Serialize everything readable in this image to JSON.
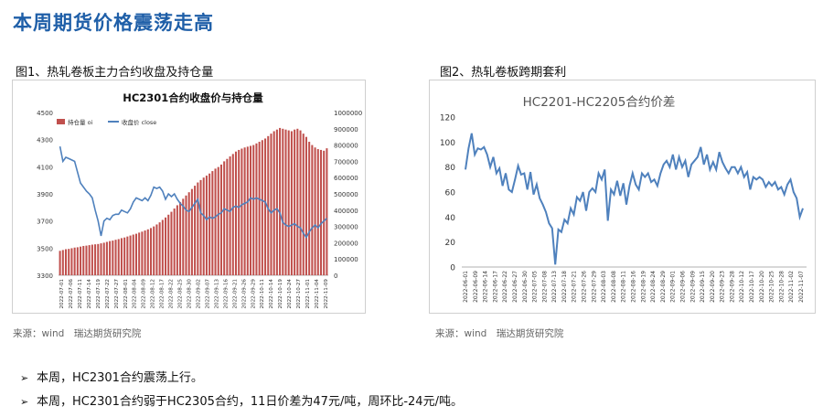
{
  "page": {
    "title": "本周期货价格震荡走高",
    "fig1_caption": "图1、热轧卷板主力合约收盘及持仓量",
    "fig2_caption": "图2、热轧卷板跨期套利",
    "source1": "来源：wind　瑞达期货研究院",
    "source2": "来源：wind　瑞达期货研究院",
    "bullet1": "本周，HC2301合约震荡上行。",
    "bullet2": "本周，HC2301合约弱于HC2305合约，11日价差为47元/吨，周环比-24元/吨。",
    "colors": {
      "title": "#1f5fa8",
      "bar": "#c0504d",
      "line": "#4f81bd"
    }
  },
  "chart_data": [
    {
      "type": "bar+line",
      "title": "HC2301合约收盘价与持仓量",
      "legend": [
        "持仓量 oi",
        "收盘价 close"
      ],
      "legend_position": "top",
      "y_left": {
        "min": 3300,
        "max": 4500,
        "ticks": [
          "4500",
          "4300",
          "4100",
          "3900",
          "3700",
          "3500",
          "3300"
        ]
      },
      "y_right": {
        "min": 0,
        "max": 1000000,
        "ticks": [
          "1000000",
          "900000",
          "800000",
          "700000",
          "600000",
          "500000",
          "400000",
          "300000",
          "200000",
          "100000",
          "0"
        ]
      },
      "x_ticks": [
        "2022-07-01",
        "2022-07-06",
        "2022-07-11",
        "2022-07-14",
        "2022-07-19",
        "2022-07-22",
        "2022-07-27",
        "2022-08-01",
        "2022-08-04",
        "2022-08-09",
        "2022-08-12",
        "2022-08-17",
        "2022-08-22",
        "2022-08-25",
        "2022-08-30",
        "2022-09-02",
        "2022-09-07",
        "2022-09-13",
        "2022-09-16",
        "2022-09-21",
        "2022-09-26",
        "2022-09-29",
        "2022-10-11",
        "2022-10-14",
        "2022-10-19",
        "2022-10-24",
        "2022-10-27",
        "2022-11-01",
        "2022-11-04",
        "2022-11-09"
      ],
      "series": [
        {
          "name": "持仓量 oi",
          "kind": "bar",
          "axis": "right",
          "values": [
            150000,
            155000,
            160000,
            162000,
            166000,
            170000,
            172000,
            176000,
            180000,
            182000,
            185000,
            188000,
            190000,
            192000,
            196000,
            200000,
            205000,
            210000,
            213000,
            218000,
            222000,
            228000,
            232000,
            238000,
            244000,
            250000,
            255000,
            262000,
            268000,
            275000,
            282000,
            290000,
            300000,
            312000,
            325000,
            340000,
            355000,
            372000,
            390000,
            410000,
            430000,
            450000,
            470000,
            490000,
            510000,
            530000,
            550000,
            570000,
            585000,
            600000,
            612000,
            625000,
            640000,
            655000,
            665000,
            680000,
            700000,
            715000,
            730000,
            745000,
            760000,
            770000,
            778000,
            785000,
            790000,
            795000,
            800000,
            810000,
            820000,
            830000,
            840000,
            855000,
            870000,
            885000,
            895000,
            905000,
            900000,
            895000,
            890000,
            885000,
            895000,
            900000,
            890000,
            870000,
            850000,
            820000,
            800000,
            785000,
            775000,
            770000,
            765000,
            780000
          ]
        },
        {
          "name": "收盘价 close",
          "kind": "line",
          "axis": "left",
          "values": [
            4250,
            4140,
            4170,
            4160,
            4150,
            4140,
            4060,
            3980,
            3950,
            3920,
            3900,
            3870,
            3780,
            3700,
            3590,
            3700,
            3720,
            3710,
            3740,
            3750,
            3750,
            3780,
            3770,
            3760,
            3790,
            3840,
            3870,
            3860,
            3850,
            3870,
            3850,
            3890,
            3950,
            3940,
            3950,
            3920,
            3860,
            3900,
            3880,
            3900,
            3860,
            3830,
            3810,
            3780,
            3770,
            3800,
            3830,
            3860,
            3760,
            3740,
            3710,
            3730,
            3720,
            3730,
            3750,
            3760,
            3790,
            3780,
            3770,
            3800,
            3810,
            3800,
            3820,
            3830,
            3840,
            3870,
            3860,
            3870,
            3860,
            3850,
            3840,
            3790,
            3760,
            3780,
            3790,
            3760,
            3690,
            3670,
            3660,
            3670,
            3680,
            3660,
            3650,
            3610,
            3580,
            3620,
            3650,
            3670,
            3650,
            3680,
            3700,
            3720
          ]
        }
      ]
    },
    {
      "type": "line",
      "title": "HC2201-HC2205合约价差",
      "y": {
        "min": 0,
        "max": 120,
        "ticks": [
          "120",
          "100",
          "80",
          "60",
          "40",
          "20",
          "0"
        ]
      },
      "x_ticks": [
        "2022-06-01",
        "2022-06-09",
        "2022-06-14",
        "2022-06-17",
        "2022-06-22",
        "2022-06-27",
        "2022-06-30",
        "2022-07-05",
        "2022-07-08",
        "2022-07-13",
        "2022-07-18",
        "2022-07-21",
        "2022-07-26",
        "2022-07-29",
        "2022-08-03",
        "2022-08-08",
        "2022-08-11",
        "2022-08-16",
        "2022-08-19",
        "2022-08-24",
        "2022-08-29",
        "2022-09-01",
        "2022-09-06",
        "2022-09-09",
        "2022-09-15",
        "2022-09-20",
        "2022-09-23",
        "2022-09-28",
        "2022-10-12",
        "2022-10-17",
        "2022-10-20",
        "2022-10-25",
        "2022-10-28",
        "2022-11-02",
        "2022-11-07"
      ],
      "series": [
        {
          "name": "价差",
          "values": [
            78,
            95,
            107,
            90,
            95,
            94,
            96,
            90,
            80,
            88,
            75,
            79,
            65,
            75,
            62,
            60,
            70,
            81,
            74,
            75,
            62,
            76,
            58,
            66,
            55,
            50,
            44,
            35,
            31,
            2,
            30,
            28,
            38,
            35,
            47,
            42,
            56,
            53,
            60,
            45,
            60,
            63,
            60,
            75,
            70,
            78,
            37,
            62,
            58,
            69,
            57,
            67,
            50,
            65,
            75,
            66,
            62,
            75,
            72,
            75,
            68,
            70,
            65,
            75,
            82,
            85,
            80,
            90,
            78,
            88,
            80,
            85,
            72,
            82,
            85,
            88,
            96,
            82,
            90,
            78,
            84,
            78,
            92,
            84,
            79,
            75,
            80,
            80,
            75,
            80,
            72,
            76,
            62,
            72,
            70,
            72,
            70,
            64,
            68,
            65,
            68,
            62,
            64,
            58,
            66,
            70,
            60,
            55,
            40,
            47
          ]
        }
      ]
    }
  ]
}
